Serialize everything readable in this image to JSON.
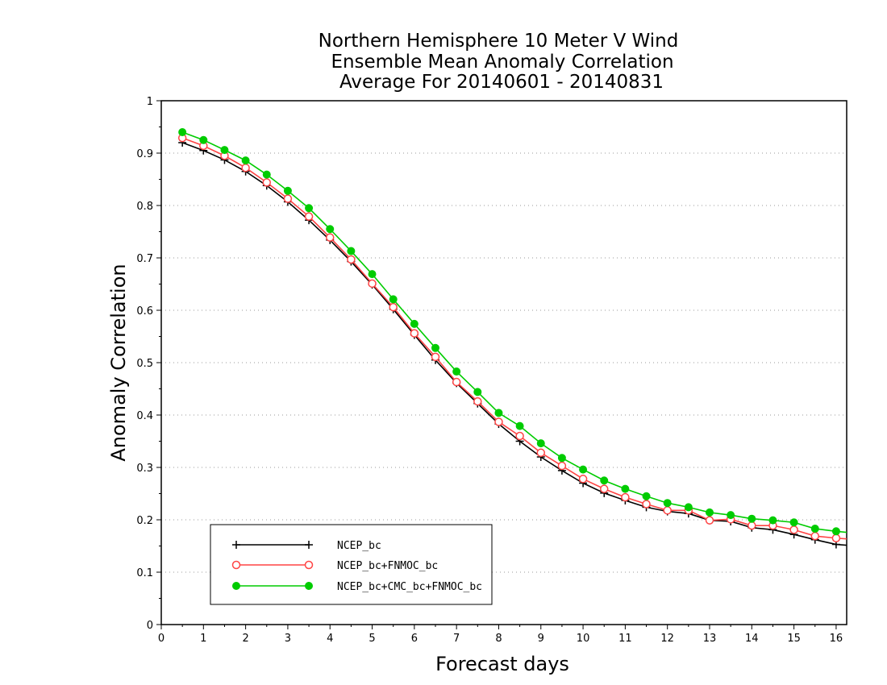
{
  "chart_data": {
    "type": "line",
    "title": [
      "Northern Hemisphere 10 Meter V Wind",
      "Ensemble Mean Anomaly Correlation",
      "Average For 20140601 - 20140831"
    ],
    "xlabel": "Forecast days",
    "ylabel": "Anomaly Correlation",
    "xlim": [
      0,
      16.25
    ],
    "ylim": [
      0,
      1
    ],
    "xticks": [
      "0",
      "1",
      "2",
      "3",
      "4",
      "5",
      "6",
      "7",
      "8",
      "9",
      "10",
      "11",
      "12",
      "13",
      "14",
      "15",
      "16"
    ],
    "yticks": [
      "0",
      "0.1",
      "0.2",
      "0.3",
      "0.4",
      "0.5",
      "0.6",
      "0.7",
      "0.8",
      "0.9",
      "1"
    ],
    "grid": "horizontal dotted",
    "legend_position": "lower-left",
    "x": [
      0.5,
      1,
      1.5,
      2,
      2.5,
      3,
      3.5,
      4,
      4.5,
      5,
      5.5,
      6,
      6.5,
      7,
      7.5,
      8,
      8.5,
      9,
      9.5,
      10,
      10.5,
      11,
      11.5,
      12,
      12.5,
      13,
      13.5,
      14,
      14.5,
      15,
      15.5,
      16,
      16.5
    ],
    "series": [
      {
        "name": "NCEP_bc",
        "color": "#000000",
        "marker": "plus",
        "values": [
          0.92,
          0.905,
          0.887,
          0.865,
          0.838,
          0.807,
          0.772,
          0.734,
          0.693,
          0.649,
          0.602,
          0.553,
          0.505,
          0.461,
          0.422,
          0.383,
          0.35,
          0.32,
          0.294,
          0.27,
          0.251,
          0.237,
          0.224,
          0.216,
          0.212,
          0.199,
          0.197,
          0.185,
          0.181,
          0.172,
          0.162,
          0.153,
          0.15
        ]
      },
      {
        "name": "NCEP_bc+FNMOC_bc",
        "color": "#ff4444",
        "marker": "open-circle",
        "values": [
          0.929,
          0.914,
          0.895,
          0.872,
          0.844,
          0.813,
          0.779,
          0.739,
          0.697,
          0.651,
          0.606,
          0.556,
          0.511,
          0.463,
          0.426,
          0.387,
          0.36,
          0.328,
          0.303,
          0.278,
          0.259,
          0.243,
          0.23,
          0.218,
          0.218,
          0.199,
          0.201,
          0.189,
          0.189,
          0.181,
          0.169,
          0.165,
          0.162
        ]
      },
      {
        "name": "NCEP_bc+CMC_bc+FNMOC_bc",
        "color": "#00cc00",
        "marker": "filled-circle",
        "values": [
          0.94,
          0.925,
          0.906,
          0.886,
          0.859,
          0.828,
          0.795,
          0.755,
          0.713,
          0.669,
          0.621,
          0.574,
          0.528,
          0.483,
          0.444,
          0.404,
          0.379,
          0.346,
          0.318,
          0.296,
          0.275,
          0.259,
          0.245,
          0.232,
          0.224,
          0.214,
          0.209,
          0.202,
          0.199,
          0.195,
          0.183,
          0.178,
          0.174
        ]
      }
    ]
  }
}
